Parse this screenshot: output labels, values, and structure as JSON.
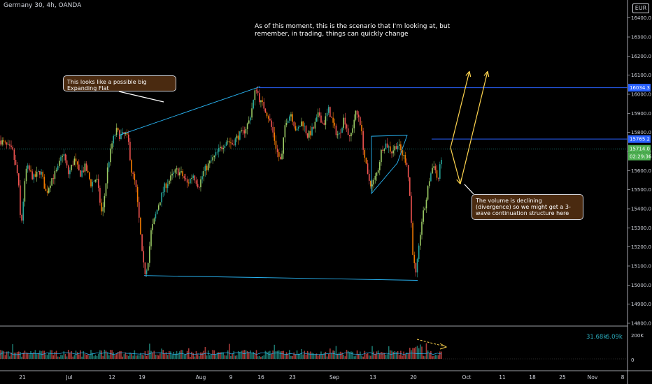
{
  "header": {
    "symbol": "Germany 30, 4h, OANDA",
    "currency": "EUR"
  },
  "annotations": {
    "note": "As of this moment, this is the scenario that I'm looking at, but remember, in trading, things can quickly change",
    "expanding_flat": "This looks like a possible big Expanding Flat",
    "volume_note": "The volume is declining (divergence) so we might get a 3-wave continuation structure here"
  },
  "volume_stats": {
    "value1": "31.68k",
    "value2": "6.09k"
  },
  "colors": {
    "up": "#26a69a",
    "up_light": "#9ccc65",
    "down": "#ef5350",
    "down_orange": "#f57c00",
    "trend_line": "#29b6f6",
    "h_line": "#2962ff",
    "projection": "#ffd54f",
    "grid": "#8a8a8a",
    "box_bg": "#4a2a10",
    "current_price_bg": "#4caf50"
  },
  "chart_data": {
    "type": "candlestick",
    "symbol": "Germany 30",
    "timeframe": "4h",
    "y_ticks": [
      14800.0,
      14900.0,
      15000.0,
      15100.0,
      15200.0,
      15300.0,
      15400.0,
      15500.0,
      15600.0,
      15700.0,
      15800.0,
      15900.0,
      16000.0,
      16100.0,
      16200.0,
      16300.0,
      16400.0
    ],
    "ylim": [
      14800,
      16450
    ],
    "x_ticks": [
      "21",
      "Jul",
      "12",
      "19",
      "Aug",
      "9",
      "16",
      "23",
      "Sep",
      "13",
      "20",
      "Oct",
      "11",
      "18",
      "25",
      "Nov",
      "8"
    ],
    "price_labels": {
      "resistance": {
        "text": "16034.3",
        "value": 16034.3
      },
      "level": {
        "text": "15765.2",
        "value": 15765.2
      },
      "current": {
        "text": "15714.0",
        "value": 15714.0,
        "timer": "02:29:36"
      }
    },
    "volume_axis": {
      "ticks": [
        "200K",
        "0"
      ]
    },
    "close_path": [
      [
        0,
        15760
      ],
      [
        18,
        15700
      ],
      [
        26,
        15560
      ],
      [
        30,
        15290
      ],
      [
        34,
        15480
      ],
      [
        38,
        15620
      ],
      [
        48,
        15560
      ],
      [
        58,
        15600
      ],
      [
        66,
        15480
      ],
      [
        74,
        15560
      ],
      [
        82,
        15600
      ],
      [
        90,
        15700
      ],
      [
        98,
        15580
      ],
      [
        106,
        15660
      ],
      [
        114,
        15580
      ],
      [
        122,
        15620
      ],
      [
        130,
        15530
      ],
      [
        138,
        15560
      ],
      [
        146,
        15360
      ],
      [
        154,
        15620
      ],
      [
        160,
        15740
      ],
      [
        166,
        15810
      ],
      [
        172,
        15780
      ],
      [
        180,
        15790
      ],
      [
        184,
        15740
      ],
      [
        188,
        15600
      ],
      [
        194,
        15520
      ],
      [
        200,
        15300
      ],
      [
        204,
        15120
      ],
      [
        208,
        15060
      ],
      [
        212,
        15140
      ],
      [
        216,
        15280
      ],
      [
        222,
        15360
      ],
      [
        228,
        15440
      ],
      [
        236,
        15520
      ],
      [
        244,
        15560
      ],
      [
        252,
        15600
      ],
      [
        260,
        15580
      ],
      [
        268,
        15530
      ],
      [
        276,
        15580
      ],
      [
        284,
        15520
      ],
      [
        292,
        15600
      ],
      [
        300,
        15640
      ],
      [
        308,
        15680
      ],
      [
        316,
        15720
      ],
      [
        324,
        15760
      ],
      [
        332,
        15740
      ],
      [
        340,
        15780
      ],
      [
        348,
        15800
      ],
      [
        356,
        15860
      ],
      [
        362,
        15960
      ],
      [
        366,
        16040
      ],
      [
        372,
        15960
      ],
      [
        378,
        15930
      ],
      [
        384,
        15880
      ],
      [
        390,
        15800
      ],
      [
        396,
        15700
      ],
      [
        402,
        15640
      ],
      [
        408,
        15860
      ],
      [
        416,
        15900
      ],
      [
        424,
        15800
      ],
      [
        432,
        15860
      ],
      [
        440,
        15780
      ],
      [
        448,
        15820
      ],
      [
        456,
        15900
      ],
      [
        462,
        15840
      ],
      [
        470,
        15920
      ],
      [
        478,
        15820
      ],
      [
        484,
        15780
      ],
      [
        492,
        15880
      ],
      [
        500,
        15760
      ],
      [
        508,
        15900
      ],
      [
        514,
        15880
      ],
      [
        520,
        15700
      ],
      [
        526,
        15560
      ],
      [
        532,
        15520
      ],
      [
        540,
        15600
      ],
      [
        546,
        15720
      ],
      [
        552,
        15740
      ],
      [
        560,
        15700
      ],
      [
        568,
        15740
      ],
      [
        576,
        15680
      ],
      [
        582,
        15640
      ],
      [
        586,
        15460
      ],
      [
        590,
        15180
      ],
      [
        594,
        15040
      ],
      [
        598,
        15160
      ],
      [
        602,
        15320
      ],
      [
        608,
        15420
      ],
      [
        614,
        15560
      ],
      [
        620,
        15640
      ],
      [
        626,
        15540
      ],
      [
        632,
        15700
      ]
    ],
    "structures": {
      "expanding_flat_upper": [
        [
          170,
          15785
        ],
        [
          372,
          16040
        ]
      ],
      "expanding_flat_lower": [
        [
          206,
          15050
        ],
        [
          597,
          15025
        ]
      ],
      "triangle": [
        [
          531,
          15780
        ],
        [
          582,
          15785
        ],
        [
          568,
          15640
        ],
        [
          531,
          15480
        ]
      ],
      "projection_up": [
        [
          644,
          15720
        ],
        [
          671,
          16120
        ]
      ],
      "projection_down": [
        [
          644,
          15720
        ],
        [
          658,
          15530
        ]
      ],
      "projection_up2": [
        [
          658,
          15530
        ],
        [
          697,
          16120
        ]
      ]
    }
  }
}
